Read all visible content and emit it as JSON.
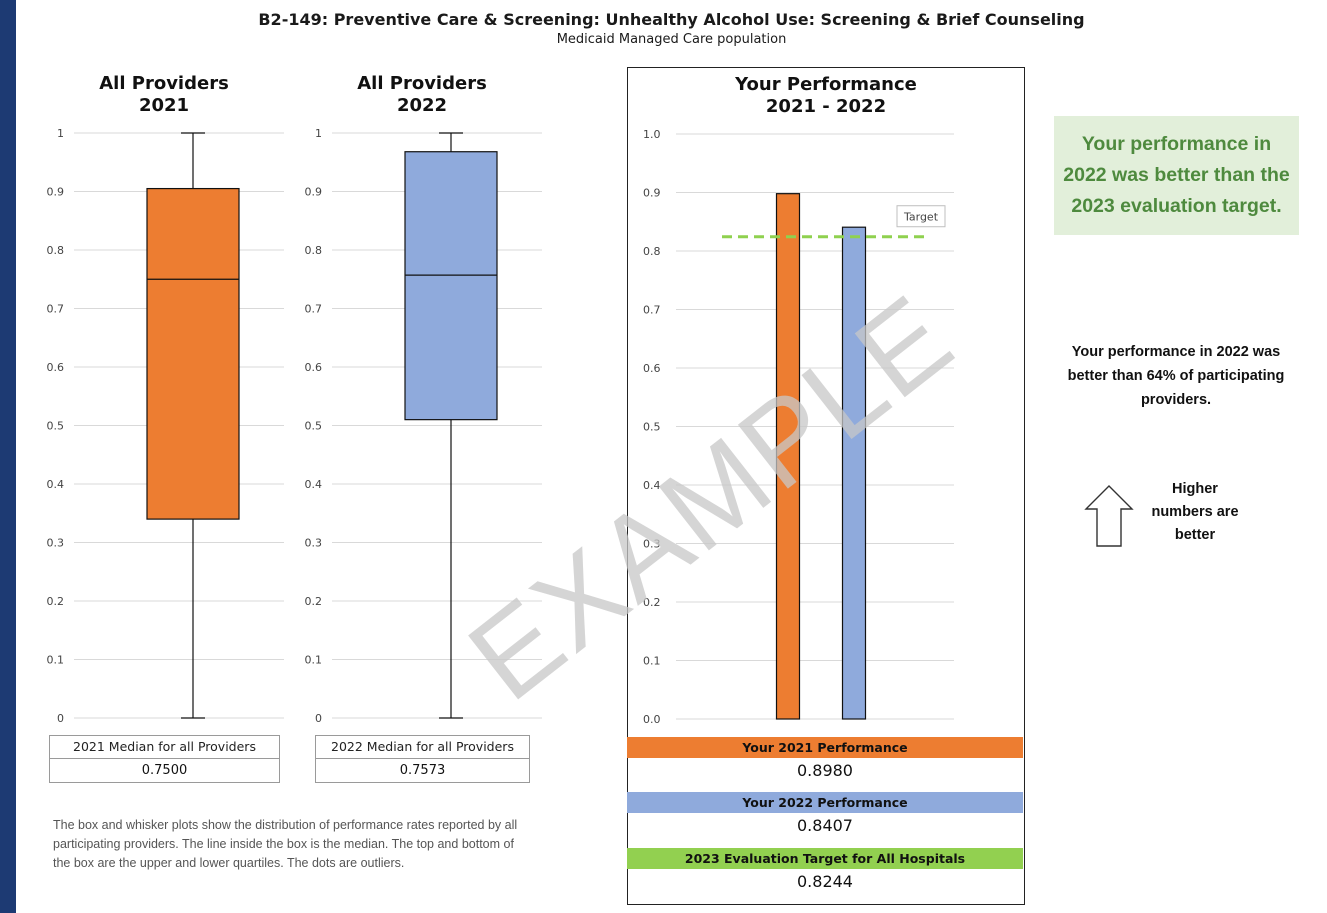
{
  "header": {
    "title": "B2-149: Preventive Care & Screening: Unhealthy Alcohol Use: Screening & Brief Counseling",
    "subtitle": "Medicaid Managed Care population"
  },
  "colors": {
    "orange": "#ed7d31",
    "blue": "#8faadc",
    "green": "#92d050",
    "target_line": "#8fd14f",
    "verdict_bg": "#e2efda",
    "verdict_text": "#4e8a3e",
    "page_border": "#1d3a73"
  },
  "chart_data": [
    {
      "type": "box",
      "title_lines": [
        "All Providers",
        "2021"
      ],
      "ylim": [
        0,
        1
      ],
      "ticks": [
        "0",
        "0.1",
        "0.2",
        "0.3",
        "0.4",
        "0.5",
        "0.6",
        "0.7",
        "0.8",
        "0.9",
        "1"
      ],
      "min": 0,
      "q1": 0.34,
      "median": 0.75,
      "q3": 0.905,
      "max": 1,
      "color": "orange",
      "median_label": "2021  Median for all Providers",
      "median_value": "0.7500"
    },
    {
      "type": "box",
      "title_lines": [
        "All Providers",
        "2022"
      ],
      "ylim": [
        0,
        1
      ],
      "ticks": [
        "0",
        "0.1",
        "0.2",
        "0.3",
        "0.4",
        "0.5",
        "0.6",
        "0.7",
        "0.8",
        "0.9",
        "1"
      ],
      "min": 0,
      "q1": 0.51,
      "median": 0.757,
      "q3": 0.968,
      "max": 1,
      "color": "blue",
      "median_label": "2022 Median for all Providers",
      "median_value": "0.7573"
    },
    {
      "type": "bar",
      "title_lines": [
        "Your Performance",
        "2021 - 2022"
      ],
      "ylim": [
        0,
        1
      ],
      "ticks": [
        "0.0",
        "0.1",
        "0.2",
        "0.3",
        "0.4",
        "0.5",
        "0.6",
        "0.7",
        "0.8",
        "0.9",
        "1.0"
      ],
      "categories": [
        "2021",
        "2022"
      ],
      "values": [
        0.898,
        0.8407
      ],
      "colors": [
        "orange",
        "blue"
      ],
      "target": 0.8244,
      "target_label": "Target",
      "legend": [
        {
          "label": "Your 2021 Performance",
          "value": "0.8980",
          "color": "orange"
        },
        {
          "label": "Your 2022 Performance",
          "value": "0.8407",
          "color": "blue"
        },
        {
          "label": "2023 Evaluation Target for All Hospitals",
          "value": "0.8244",
          "color": "green"
        }
      ]
    }
  ],
  "notes": {
    "box_explanation": "The box and whisker plots show the distribution of performance rates reported by all participating providers. The line inside the box is the median. The top and bottom of the box are the upper and lower quartiles. The dots are outliers."
  },
  "side_panel": {
    "verdict": "Your performance in 2022 was better than the 2023 evaluation target.",
    "percentile_text": "Your performance in 2022 was better than 64% of participating providers.",
    "higher_text": "Higher numbers are better",
    "arrow_icon": "up-arrow-outline-icon"
  },
  "watermark": "EXAMPLE"
}
